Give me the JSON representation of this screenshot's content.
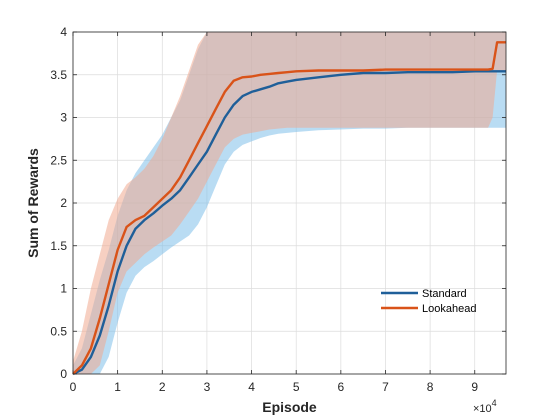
{
  "chart_data": {
    "type": "line",
    "xlabel": "Episode",
    "ylabel": "Sum of Rewards",
    "x_exponent_label": "×10",
    "x_exponent_power": "4",
    "xlim": [
      0,
      97000
    ],
    "ylim": [
      0,
      4
    ],
    "xticks": [
      0,
      10000,
      20000,
      30000,
      40000,
      50000,
      60000,
      70000,
      80000,
      90000
    ],
    "xtick_labels": [
      "0",
      "1",
      "2",
      "3",
      "4",
      "5",
      "6",
      "7",
      "8",
      "9"
    ],
    "yticks": [
      0,
      0.5,
      1,
      1.5,
      2,
      2.5,
      3,
      3.5,
      4
    ],
    "ytick_labels": [
      "0",
      "0.5",
      "1",
      "1.5",
      "2",
      "2.5",
      "3",
      "3.5",
      "4"
    ],
    "grid": true,
    "legend_position": "lower-right",
    "series": [
      {
        "name": "Standard",
        "color": "#1f5f99",
        "band_color": "#7fbfea",
        "x": [
          0,
          2000,
          4000,
          6000,
          8000,
          10000,
          12000,
          14000,
          16000,
          18000,
          20000,
          22000,
          24000,
          26000,
          28000,
          30000,
          32000,
          34000,
          36000,
          38000,
          40000,
          42000,
          44000,
          46000,
          48000,
          50000,
          55000,
          60000,
          65000,
          70000,
          75000,
          80000,
          85000,
          90000,
          93000,
          95000,
          97000
        ],
        "mean": [
          0,
          0.05,
          0.2,
          0.45,
          0.8,
          1.2,
          1.5,
          1.7,
          1.8,
          1.88,
          1.97,
          2.05,
          2.15,
          2.3,
          2.45,
          2.6,
          2.8,
          3.0,
          3.15,
          3.25,
          3.3,
          3.33,
          3.36,
          3.4,
          3.42,
          3.44,
          3.47,
          3.5,
          3.52,
          3.52,
          3.53,
          3.53,
          3.53,
          3.54,
          3.54,
          3.54,
          3.54
        ],
        "lower": [
          0,
          0,
          0,
          0,
          0.2,
          0.6,
          0.95,
          1.15,
          1.25,
          1.32,
          1.4,
          1.48,
          1.55,
          1.62,
          1.75,
          1.95,
          2.2,
          2.45,
          2.6,
          2.68,
          2.72,
          2.76,
          2.79,
          2.81,
          2.82,
          2.83,
          2.85,
          2.86,
          2.87,
          2.87,
          2.88,
          2.88,
          2.88,
          2.88,
          2.88,
          2.88,
          2.88
        ],
        "upper": [
          0.1,
          0.3,
          0.7,
          1.1,
          1.45,
          1.85,
          2.15,
          2.35,
          2.5,
          2.65,
          2.8,
          3.0,
          3.2,
          3.5,
          3.8,
          4.0,
          4.0,
          4.0,
          4.0,
          4.0,
          4.0,
          4.0,
          4.0,
          4.0,
          4.0,
          4.0,
          4.0,
          4.0,
          4.0,
          4.0,
          4.0,
          4.0,
          4.0,
          4.0,
          4.0,
          4.0,
          4.0
        ]
      },
      {
        "name": "Lookahead",
        "color": "#d95319",
        "band_color": "#f0a990",
        "x": [
          0,
          2000,
          4000,
          6000,
          8000,
          10000,
          12000,
          14000,
          16000,
          18000,
          20000,
          22000,
          24000,
          26000,
          28000,
          30000,
          32000,
          34000,
          36000,
          38000,
          40000,
          42000,
          44000,
          46000,
          48000,
          50000,
          55000,
          60000,
          65000,
          70000,
          75000,
          80000,
          85000,
          90000,
          93000,
          94000,
          95000,
          97000
        ],
        "mean": [
          0,
          0.1,
          0.3,
          0.65,
          1.05,
          1.45,
          1.72,
          1.8,
          1.85,
          1.95,
          2.05,
          2.15,
          2.3,
          2.5,
          2.7,
          2.9,
          3.1,
          3.3,
          3.43,
          3.47,
          3.48,
          3.5,
          3.51,
          3.52,
          3.53,
          3.54,
          3.55,
          3.55,
          3.55,
          3.56,
          3.56,
          3.56,
          3.56,
          3.56,
          3.56,
          3.57,
          3.88,
          3.88
        ],
        "lower": [
          0,
          0,
          0,
          0.1,
          0.5,
          0.95,
          1.2,
          1.3,
          1.4,
          1.48,
          1.55,
          1.62,
          1.75,
          1.9,
          2.05,
          2.25,
          2.45,
          2.65,
          2.75,
          2.8,
          2.82,
          2.84,
          2.86,
          2.87,
          2.88,
          2.88,
          2.88,
          2.88,
          2.88,
          2.88,
          2.88,
          2.88,
          2.88,
          2.88,
          2.88,
          3.0,
          3.55,
          3.55
        ],
        "upper": [
          0.15,
          0.5,
          1.0,
          1.4,
          1.8,
          2.05,
          2.22,
          2.3,
          2.4,
          2.55,
          2.75,
          3.0,
          3.25,
          3.55,
          3.85,
          4.0,
          4.0,
          4.0,
          4.0,
          4.0,
          4.0,
          4.0,
          4.0,
          4.0,
          4.0,
          4.0,
          4.0,
          4.0,
          4.0,
          4.0,
          4.0,
          4.0,
          4.0,
          4.0,
          4.0,
          4.0,
          4.0,
          4.0
        ]
      }
    ]
  }
}
